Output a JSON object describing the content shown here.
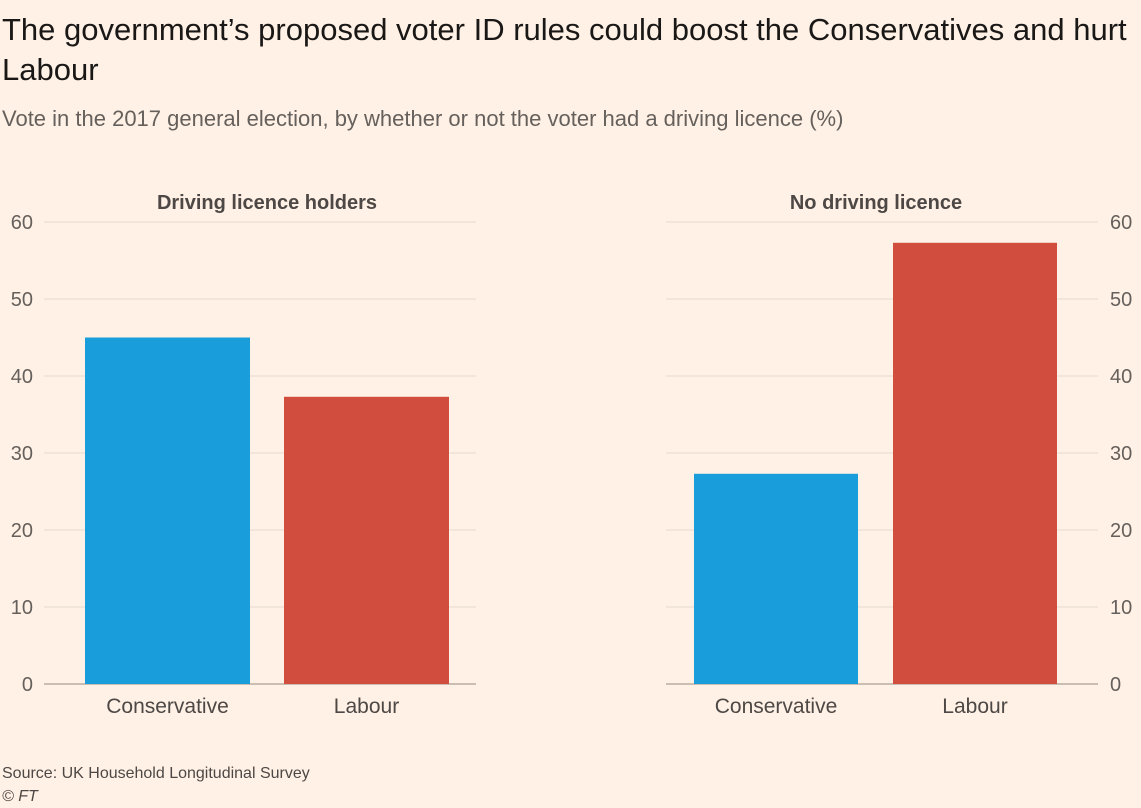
{
  "header": {
    "title": "The government’s proposed voter ID rules could boost the Conservatives and hurt Labour",
    "subtitle": "Vote in the 2017 general election, by whether or not the voter had a driving licence (%)"
  },
  "footer": {
    "source": "Source: UK Household Longitudinal Survey",
    "copyright": "© FT"
  },
  "colors": {
    "Conservative": "#1a9ddb",
    "Labour": "#d14e3e",
    "gridline": "#e6d9ce",
    "baseline": "#b8aca2"
  },
  "chart_data": [
    {
      "type": "bar",
      "title": "Driving licence holders",
      "categories": [
        "Conservative",
        "Labour"
      ],
      "values": [
        45,
        37.3
      ],
      "ylim": [
        0,
        60
      ],
      "yticks": [
        "0",
        "10",
        "20",
        "30",
        "40",
        "50",
        "60"
      ],
      "y_axis_side": "left",
      "grid": true
    },
    {
      "type": "bar",
      "title": "No driving licence",
      "categories": [
        "Conservative",
        "Labour"
      ],
      "values": [
        27.3,
        57.3
      ],
      "ylim": [
        0,
        60
      ],
      "yticks": [
        "0",
        "10",
        "20",
        "30",
        "40",
        "50",
        "60"
      ],
      "y_axis_side": "right",
      "grid": true
    }
  ]
}
